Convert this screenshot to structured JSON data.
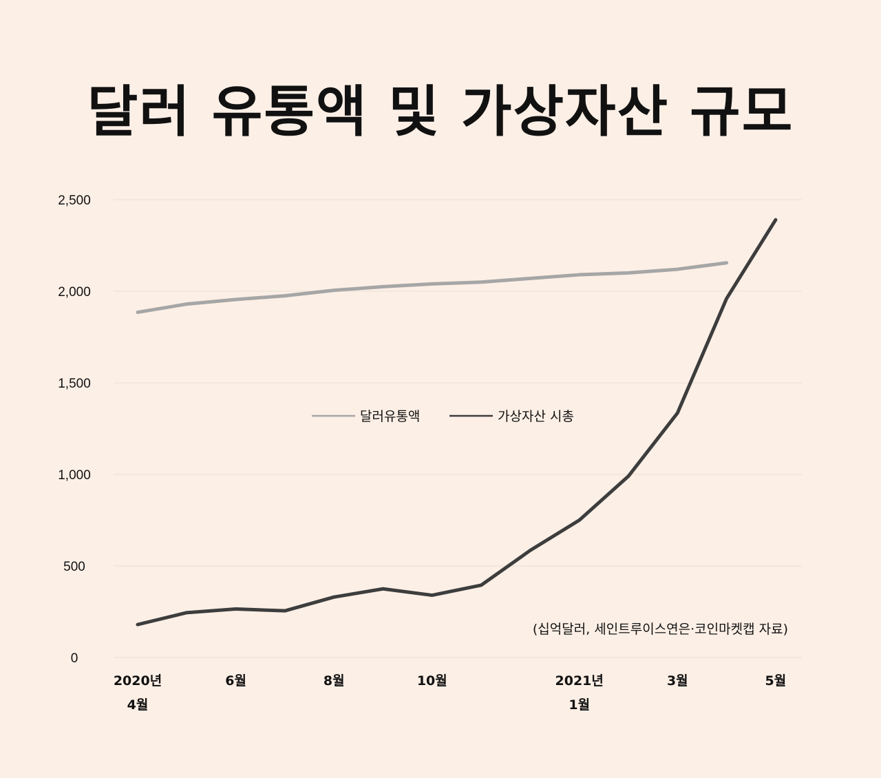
{
  "title": "달러 유통액 및 가상자산 규모",
  "legend": [
    {
      "label": "달러유통액",
      "color": "#a6a6a6"
    },
    {
      "label": "가상자산  시총",
      "color": "#3d3d3d"
    }
  ],
  "source_note": "(십억달러,  세인트루이스연은·코인마켓캡   자료)",
  "y_ticks": [
    "0",
    "500",
    "1,000",
    "1,500",
    "2,000",
    "2,500"
  ],
  "x_ticks": [
    {
      "line1": "2020년",
      "line2": "4월",
      "index": 0
    },
    {
      "line1": "6월",
      "line2": "",
      "index": 2
    },
    {
      "line1": "8월",
      "line2": "",
      "index": 4
    },
    {
      "line1": "10월",
      "line2": "",
      "index": 6
    },
    {
      "line1": "2021년",
      "line2": "1월",
      "index": 9
    },
    {
      "line1": "3월",
      "line2": "",
      "index": 11
    },
    {
      "line1": "5월",
      "line2": "",
      "index": 13
    }
  ],
  "chart_data": {
    "type": "line",
    "title": "달러 유통액 및 가상자산 규모",
    "xlabel": "",
    "ylabel": "십억달러",
    "ylim": [
      0,
      2500
    ],
    "grid": true,
    "legend_position": "center",
    "x": [
      "2020-04",
      "2020-05",
      "2020-06",
      "2020-07",
      "2020-08",
      "2020-09",
      "2020-10",
      "2020-11",
      "2020-12",
      "2021-01",
      "2021-02",
      "2021-03",
      "2021-04",
      "2021-05"
    ],
    "series": [
      {
        "name": "달러유통액",
        "color": "#a6a6a6",
        "values": [
          1885,
          1930,
          1955,
          1975,
          2005,
          2025,
          2040,
          2050,
          2070,
          2090,
          2100,
          2120,
          2155,
          null
        ]
      },
      {
        "name": "가상자산 시총",
        "color": "#3d3d3d",
        "values": [
          180,
          245,
          265,
          255,
          330,
          375,
          340,
          395,
          585,
          750,
          990,
          1335,
          1960,
          2390
        ]
      }
    ],
    "annotations": [
      "(십억달러,  세인트루이스연은·코인마켓캡   자료)"
    ]
  }
}
